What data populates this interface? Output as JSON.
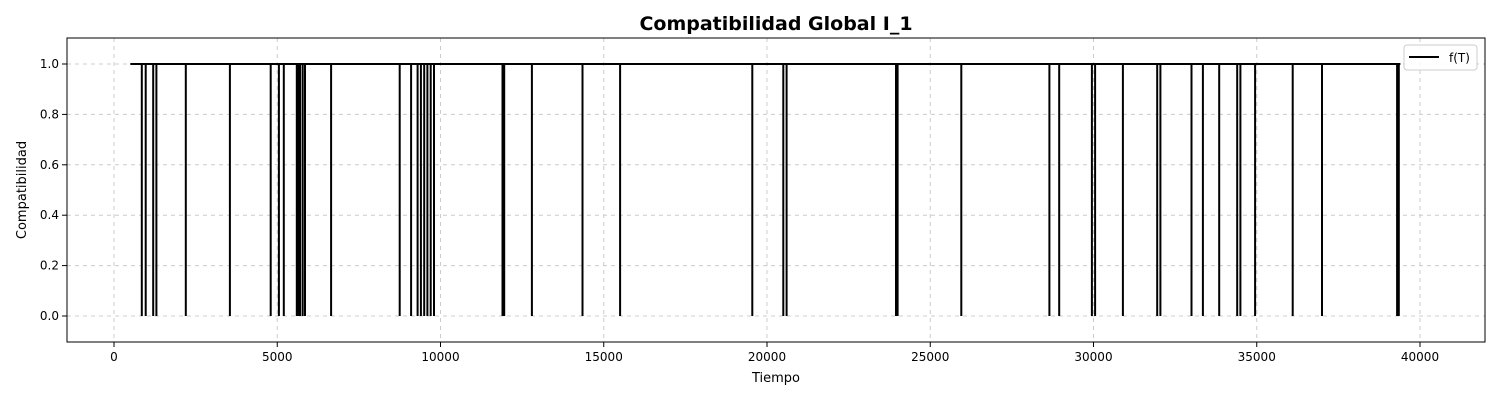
{
  "chart_data": {
    "type": "line",
    "title": "Compatibilidad Global I_1",
    "xlabel": "Tiempo",
    "ylabel": "Compatibilidad",
    "xlim": [
      -1400,
      41900
    ],
    "ylim": [
      -0.1,
      1.1
    ],
    "xticks": [
      0,
      5000,
      10000,
      15000,
      20000,
      25000,
      30000,
      35000,
      40000
    ],
    "xtick_labels": [
      "0",
      "5000",
      "10000",
      "15000",
      "20000",
      "25000",
      "30000",
      "35000",
      "40000"
    ],
    "yticks": [
      0.0,
      0.2,
      0.4,
      0.6,
      0.8,
      1.0
    ],
    "ytick_labels": [
      "0.0",
      "0.2",
      "0.4",
      "0.6",
      "0.8",
      "1.0"
    ],
    "grid": true,
    "legend_position": "top-right",
    "colors": {
      "series": "#000000",
      "grid": "#cccccc"
    },
    "series": [
      {
        "name": "f(T)",
        "x_start": 500,
        "x_end": 39400,
        "baseline": 1.0,
        "drop_value": 0.0,
        "drop_times": [
          850,
          970,
          1200,
          1300,
          2200,
          3550,
          4800,
          5050,
          5200,
          5600,
          5650,
          5700,
          5780,
          5850,
          6650,
          8750,
          9100,
          9300,
          9400,
          9500,
          9600,
          9700,
          9800,
          11900,
          11950,
          12800,
          14350,
          15500,
          19550,
          20500,
          20600,
          23950,
          24000,
          25950,
          28650,
          28950,
          29950,
          30050,
          30900,
          31950,
          32050,
          33000,
          33350,
          33850,
          34400,
          34500,
          34950,
          36100,
          37000,
          39300,
          39350
        ]
      }
    ]
  }
}
